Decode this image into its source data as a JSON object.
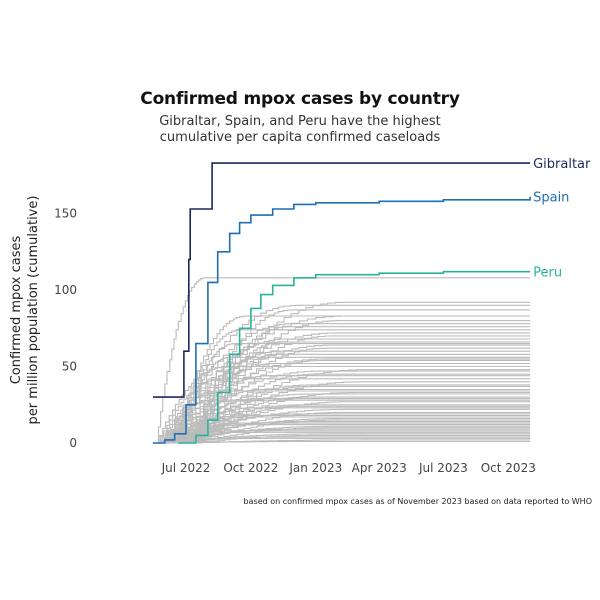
{
  "chart_data": {
    "type": "line",
    "title": "Confirmed mpox cases by country",
    "subtitle_lines": [
      "Gibraltar, Spain, and Peru have the highest",
      "cumulative per capita confirmed caseloads"
    ],
    "ylabel_lines": [
      "Confirmed mpox cases",
      "per million population (cumulative)"
    ],
    "xlabel": "",
    "caption": "based on confirmed mpox cases as of November 2023 based on data reported to WHO",
    "x_range": [
      "2022-05-01",
      "2023-11-15"
    ],
    "ylim": [
      0,
      185
    ],
    "y_ticks": [
      0,
      50,
      100,
      150
    ],
    "x_ticks": [
      {
        "date": "2022-07-01",
        "label": "Jul 2022"
      },
      {
        "date": "2022-10-01",
        "label": "Oct 2022"
      },
      {
        "date": "2023-01-01",
        "label": "Jan 2023"
      },
      {
        "date": "2023-04-01",
        "label": "Apr 2023"
      },
      {
        "date": "2023-07-01",
        "label": "Jul 2023"
      },
      {
        "date": "2023-10-01",
        "label": "Oct 2023"
      }
    ],
    "grid": false,
    "legend": "direct labels at line ends",
    "highlight_series": [
      {
        "name": "Gibraltar",
        "color": "#1b2a5e",
        "points": [
          [
            "2022-05-15",
            30
          ],
          [
            "2022-06-25",
            30
          ],
          [
            "2022-06-28",
            60
          ],
          [
            "2022-07-05",
            120
          ],
          [
            "2022-07-07",
            153
          ],
          [
            "2022-08-05",
            153
          ],
          [
            "2022-08-07",
            183
          ],
          [
            "2023-11-01",
            183
          ]
        ]
      },
      {
        "name": "Spain",
        "color": "#1f6fb4",
        "points": [
          [
            "2022-05-15",
            0
          ],
          [
            "2022-06-01",
            2
          ],
          [
            "2022-06-15",
            6
          ],
          [
            "2022-07-01",
            25
          ],
          [
            "2022-07-15",
            65
          ],
          [
            "2022-08-01",
            105
          ],
          [
            "2022-08-15",
            125
          ],
          [
            "2022-09-01",
            137
          ],
          [
            "2022-09-15",
            144
          ],
          [
            "2022-10-01",
            149
          ],
          [
            "2022-11-01",
            153
          ],
          [
            "2022-12-01",
            156
          ],
          [
            "2023-01-01",
            157
          ],
          [
            "2023-04-01",
            158
          ],
          [
            "2023-07-01",
            159
          ],
          [
            "2023-11-01",
            161
          ]
        ]
      },
      {
        "name": "Peru",
        "color": "#2ab39a",
        "points": [
          [
            "2022-06-20",
            0
          ],
          [
            "2022-07-15",
            5
          ],
          [
            "2022-08-01",
            15
          ],
          [
            "2022-08-15",
            33
          ],
          [
            "2022-09-01",
            58
          ],
          [
            "2022-09-15",
            75
          ],
          [
            "2022-10-01",
            88
          ],
          [
            "2022-10-15",
            97
          ],
          [
            "2022-11-01",
            103
          ],
          [
            "2022-12-01",
            108
          ],
          [
            "2023-01-01",
            110
          ],
          [
            "2023-04-01",
            111
          ],
          [
            "2023-07-01",
            112
          ],
          [
            "2023-11-01",
            112
          ]
        ]
      }
    ],
    "background_series_color": "#bbbbbb",
    "background_series_finals": [
      108,
      92,
      90,
      87,
      83,
      83,
      80,
      78,
      76,
      74,
      72,
      70,
      68,
      66,
      65,
      64,
      62,
      60,
      58,
      56,
      55,
      54,
      52,
      50,
      48,
      47,
      45,
      44,
      42,
      40,
      38,
      37,
      35,
      34,
      33,
      32,
      30,
      29,
      28,
      27,
      25,
      24,
      23,
      22,
      20,
      19,
      18,
      17,
      16,
      15,
      14,
      13,
      12,
      11,
      10,
      9,
      8,
      7,
      6,
      5,
      4,
      3,
      2,
      1
    ]
  }
}
